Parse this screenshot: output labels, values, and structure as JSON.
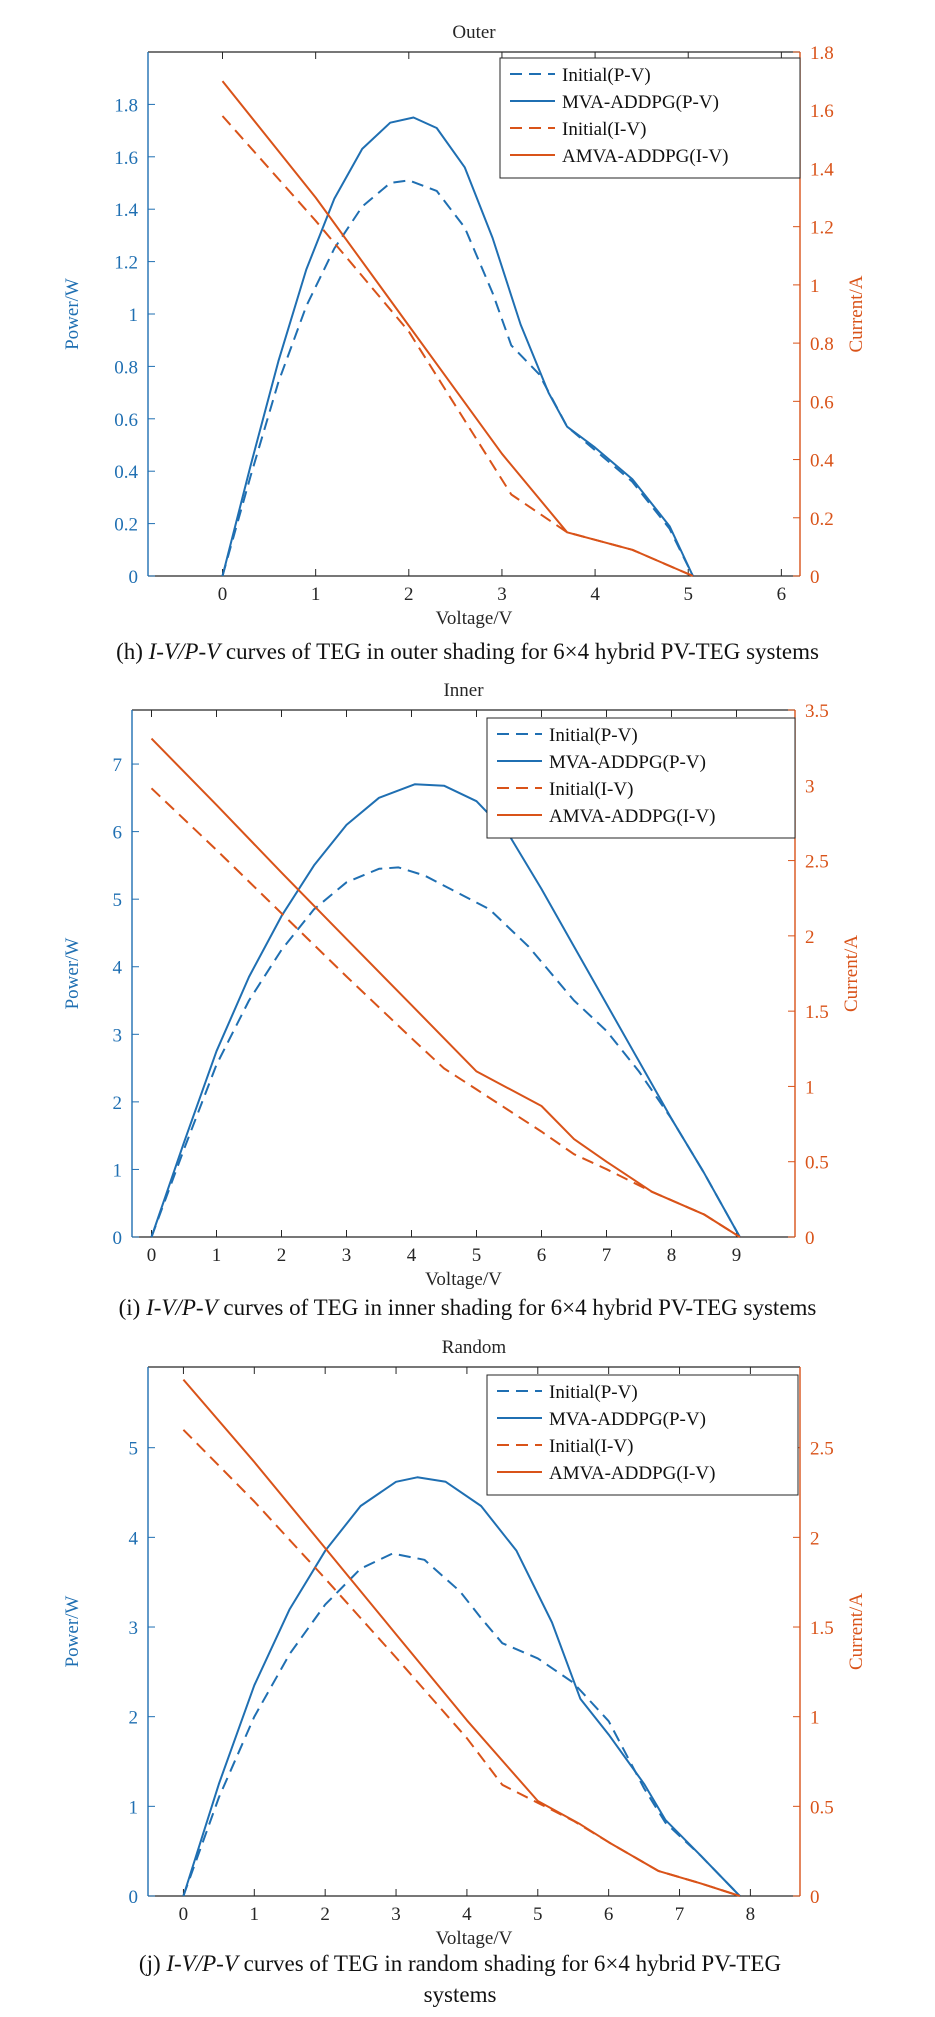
{
  "colors": {
    "left": "#1f6fb2",
    "right": "#d95319",
    "axis": "#262626"
  },
  "panels": [
    {
      "caption": {
        "prefix": "(h) ",
        "ital": "I-V/P-V",
        "rest": " curves of TEG in outer shading for 6×4 hybrid PV-TEG systems"
      }
    },
    {
      "caption": {
        "prefix": "(i) ",
        "ital": "I-V/P-V",
        "rest": " curves of TEG in inner shading for 6×4 hybrid PV-TEG systems"
      }
    },
    {
      "caption": {
        "prefix": "(j) ",
        "ital": "I-V/P-V",
        "rest": " curves of TEG in random shading for 6×4 hybrid PV-TEG systems"
      }
    }
  ],
  "chart_data": [
    {
      "type": "line",
      "title": "Outer",
      "xlabel": "Voltage/V",
      "ylabel_left": "Power/W",
      "ylabel_right": "Current/A",
      "xlim": [
        -0.8,
        6.2
      ],
      "x_ticks": [
        0,
        1,
        2,
        3,
        4,
        5,
        6
      ],
      "ylim_left": [
        0,
        2.0
      ],
      "y_ticks_left": [
        0,
        0.2,
        0.4,
        0.6,
        0.8,
        1,
        1.2,
        1.4,
        1.6,
        1.8
      ],
      "ylim_right": [
        0,
        1.8
      ],
      "y_ticks_right": [
        0,
        0.2,
        0.4,
        0.6,
        0.8,
        1,
        1.2,
        1.4,
        1.6,
        1.8
      ],
      "legend_position": "top-right",
      "grid": false,
      "series": [
        {
          "name": "Initial(P-V)",
          "axis": "left",
          "style": "dashed",
          "color": "#1f6fb2",
          "x": [
            0,
            0.3,
            0.6,
            0.9,
            1.2,
            1.5,
            1.8,
            2.0,
            2.3,
            2.6,
            2.9,
            3.1,
            3.4,
            3.7,
            4.0,
            4.4,
            4.8,
            5.05
          ],
          "y": [
            0,
            0.38,
            0.74,
            1.03,
            1.25,
            1.41,
            1.5,
            1.51,
            1.47,
            1.33,
            1.08,
            0.88,
            0.77,
            0.57,
            0.48,
            0.36,
            0.18,
            0
          ]
        },
        {
          "name": "MVA-ADDPG(P-V)",
          "axis": "left",
          "style": "solid",
          "color": "#1f6fb2",
          "x": [
            0,
            0.3,
            0.6,
            0.9,
            1.2,
            1.5,
            1.8,
            2.05,
            2.3,
            2.6,
            2.9,
            3.2,
            3.5,
            3.7,
            4.0,
            4.4,
            4.8,
            5.05
          ],
          "y": [
            0,
            0.42,
            0.82,
            1.17,
            1.44,
            1.63,
            1.73,
            1.75,
            1.71,
            1.56,
            1.29,
            0.96,
            0.7,
            0.57,
            0.49,
            0.37,
            0.19,
            0
          ]
        },
        {
          "name": "Initial(I-V)",
          "axis": "right",
          "style": "dashed",
          "color": "#d95319",
          "x": [
            0,
            1.0,
            2.0,
            3.1,
            3.7,
            4.4,
            5.05
          ],
          "y": [
            1.58,
            1.22,
            0.84,
            0.28,
            0.15,
            0.09,
            0
          ]
        },
        {
          "name": "AMVA-ADDPG(I-V)",
          "axis": "right",
          "style": "solid",
          "color": "#d95319",
          "x": [
            0,
            1.0,
            2.0,
            3.0,
            3.7,
            4.4,
            5.05
          ],
          "y": [
            1.7,
            1.3,
            0.86,
            0.42,
            0.15,
            0.09,
            0
          ]
        }
      ]
    },
    {
      "type": "line",
      "title": "Inner",
      "xlabel": "Voltage/V",
      "ylabel_left": "Power/W",
      "ylabel_right": "Current/A",
      "xlim": [
        -0.3,
        9.9
      ],
      "x_ticks": [
        0,
        1,
        2,
        3,
        4,
        5,
        6,
        7,
        8,
        9
      ],
      "ylim_left": [
        0,
        7.8
      ],
      "y_ticks_left": [
        0,
        1,
        2,
        3,
        4,
        5,
        6,
        7
      ],
      "ylim_right": [
        0,
        3.5
      ],
      "y_ticks_right": [
        0,
        0.5,
        1,
        1.5,
        2,
        2.5,
        3,
        3.5
      ],
      "legend_position": "top-right",
      "grid": false,
      "series": [
        {
          "name": "Initial(P-V)",
          "axis": "left",
          "style": "dashed",
          "color": "#1f6fb2",
          "x": [
            0,
            0.5,
            1.0,
            1.5,
            2.0,
            2.5,
            3.0,
            3.5,
            3.8,
            4.2,
            4.6,
            5.2,
            5.8,
            6.5,
            7.0,
            7.5,
            8.0,
            8.5,
            9.05
          ],
          "y": [
            0,
            1.3,
            2.55,
            3.5,
            4.25,
            4.85,
            5.25,
            5.45,
            5.47,
            5.35,
            5.15,
            4.85,
            4.3,
            3.5,
            3.05,
            2.45,
            1.75,
            0.95,
            0
          ]
        },
        {
          "name": "MVA-ADDPG(P-V)",
          "axis": "left",
          "style": "solid",
          "color": "#1f6fb2",
          "x": [
            0,
            0.5,
            1.0,
            1.5,
            2.0,
            2.5,
            3.0,
            3.5,
            4.05,
            4.5,
            5.0,
            5.5,
            6.0,
            6.5,
            7.0,
            7.5,
            8.0,
            8.5,
            9.05
          ],
          "y": [
            0,
            1.4,
            2.75,
            3.85,
            4.75,
            5.5,
            6.1,
            6.5,
            6.7,
            6.68,
            6.45,
            5.95,
            5.15,
            4.3,
            3.45,
            2.6,
            1.75,
            0.95,
            0
          ]
        },
        {
          "name": "Initial(I-V)",
          "axis": "right",
          "style": "dashed",
          "color": "#d95319",
          "x": [
            0,
            1.0,
            2.0,
            3.0,
            4.0,
            4.5,
            5.0,
            6.0,
            6.5,
            7.0,
            7.7,
            8.5,
            9.05
          ],
          "y": [
            2.98,
            2.57,
            2.15,
            1.73,
            1.32,
            1.12,
            0.98,
            0.7,
            0.55,
            0.45,
            0.3,
            0.15,
            0
          ]
        },
        {
          "name": "AMVA-ADDPG(I-V)",
          "axis": "right",
          "style": "solid",
          "color": "#d95319",
          "x": [
            0,
            1.0,
            2.0,
            3.0,
            4.0,
            5.0,
            6.0,
            6.5,
            7.0,
            7.7,
            8.5,
            9.05
          ],
          "y": [
            3.31,
            2.87,
            2.42,
            1.98,
            1.54,
            1.1,
            0.87,
            0.65,
            0.5,
            0.3,
            0.15,
            0
          ]
        }
      ]
    },
    {
      "type": "line",
      "title": "Random",
      "xlabel": "Voltage/V",
      "ylabel_left": "Power/W",
      "ylabel_right": "Current/A",
      "xlim": [
        -0.5,
        8.7
      ],
      "x_ticks": [
        0,
        1,
        2,
        3,
        4,
        5,
        6,
        7,
        8
      ],
      "ylim_left": [
        0,
        5.9
      ],
      "y_ticks_left": [
        0,
        1,
        2,
        3,
        4,
        5
      ],
      "ylim_right": [
        0,
        2.95
      ],
      "y_ticks_right": [
        0,
        0.5,
        1,
        1.5,
        2,
        2.5
      ],
      "legend_position": "top-right",
      "grid": false,
      "series": [
        {
          "name": "Initial(P-V)",
          "axis": "left",
          "style": "dashed",
          "color": "#1f6fb2",
          "x": [
            0,
            0.5,
            1.0,
            1.5,
            2.0,
            2.5,
            2.95,
            3.4,
            3.9,
            4.2,
            4.5,
            5.0,
            5.5,
            6.0,
            6.5,
            6.8,
            7.3,
            7.85
          ],
          "y": [
            0,
            1.1,
            2.0,
            2.7,
            3.25,
            3.65,
            3.82,
            3.75,
            3.4,
            3.1,
            2.82,
            2.65,
            2.38,
            1.95,
            1.2,
            0.82,
            0.45,
            0
          ]
        },
        {
          "name": "MVA-ADDPG(P-V)",
          "axis": "left",
          "style": "solid",
          "color": "#1f6fb2",
          "x": [
            0,
            0.5,
            1.0,
            1.5,
            2.0,
            2.5,
            3.0,
            3.3,
            3.7,
            4.2,
            4.7,
            5.2,
            5.6,
            6.0,
            6.5,
            6.8,
            7.3,
            7.85
          ],
          "y": [
            0,
            1.25,
            2.35,
            3.2,
            3.85,
            4.35,
            4.62,
            4.67,
            4.62,
            4.35,
            3.85,
            3.05,
            2.2,
            1.8,
            1.25,
            0.85,
            0.45,
            0
          ]
        },
        {
          "name": "Initial(I-V)",
          "axis": "right",
          "style": "dashed",
          "color": "#d95319",
          "x": [
            0,
            1.0,
            2.0,
            3.0,
            4.0,
            4.5,
            5.0,
            5.5,
            6.0,
            6.7,
            7.3,
            7.85
          ],
          "y": [
            2.6,
            2.2,
            1.77,
            1.33,
            0.88,
            0.62,
            0.52,
            0.42,
            0.3,
            0.14,
            0.07,
            0
          ]
        },
        {
          "name": "AMVA-ADDPG(I-V)",
          "axis": "right",
          "style": "solid",
          "color": "#d95319",
          "x": [
            0,
            1.0,
            2.0,
            3.0,
            4.0,
            5.0,
            5.6,
            6.0,
            6.7,
            7.3,
            7.85
          ],
          "y": [
            2.88,
            2.42,
            1.94,
            1.46,
            0.98,
            0.53,
            0.4,
            0.3,
            0.14,
            0.07,
            0
          ]
        }
      ]
    }
  ]
}
